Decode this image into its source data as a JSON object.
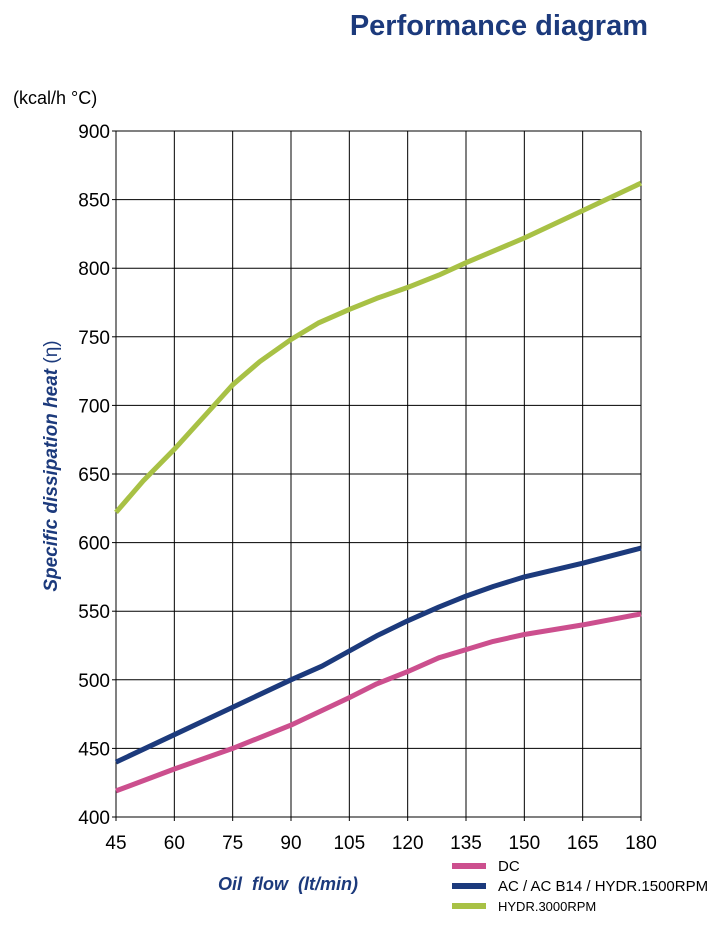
{
  "chart_data": {
    "type": "line",
    "title": "Performance diagram",
    "unit_label": "(kcal/h °C)",
    "ylabel": "Specific dissipation heat",
    "ylabel_symbol": "(η)",
    "xlabel": "Oil  flow  (lt/min)",
    "xlim": [
      45,
      180
    ],
    "ylim": [
      400,
      900
    ],
    "x_ticks": [
      45,
      60,
      75,
      90,
      105,
      120,
      135,
      150,
      165,
      180
    ],
    "y_ticks": [
      400,
      450,
      500,
      550,
      600,
      650,
      700,
      750,
      800,
      850,
      900
    ],
    "grid": true,
    "legend_position": "bottom-right",
    "series": [
      {
        "name": "DC",
        "color": "#cc4f8e",
        "x": [
          45,
          60,
          75,
          90,
          105,
          112,
          120,
          128,
          135,
          142,
          150,
          165,
          180
        ],
        "y": [
          419,
          435,
          450,
          467,
          487,
          497,
          506,
          516,
          522,
          528,
          533,
          540,
          548
        ]
      },
      {
        "name": "AC / AC B14 / HYDR.1500RPM",
        "color": "#1c3a7c",
        "x": [
          45,
          60,
          75,
          90,
          98,
          105,
          112,
          120,
          128,
          135,
          142,
          150,
          165,
          180
        ],
        "y": [
          440,
          460,
          480,
          500,
          510,
          521,
          532,
          543,
          553,
          561,
          568,
          575,
          585,
          596
        ]
      },
      {
        "name": "HYDR.3000RPM",
        "color": "#a8c145",
        "x": [
          45,
          52,
          60,
          68,
          75,
          82,
          90,
          97,
          105,
          112,
          120,
          128,
          135,
          150,
          165,
          180
        ],
        "y": [
          622,
          645,
          668,
          693,
          715,
          732,
          748,
          760,
          770,
          778,
          786,
          795,
          804,
          822,
          842,
          862
        ]
      }
    ]
  }
}
